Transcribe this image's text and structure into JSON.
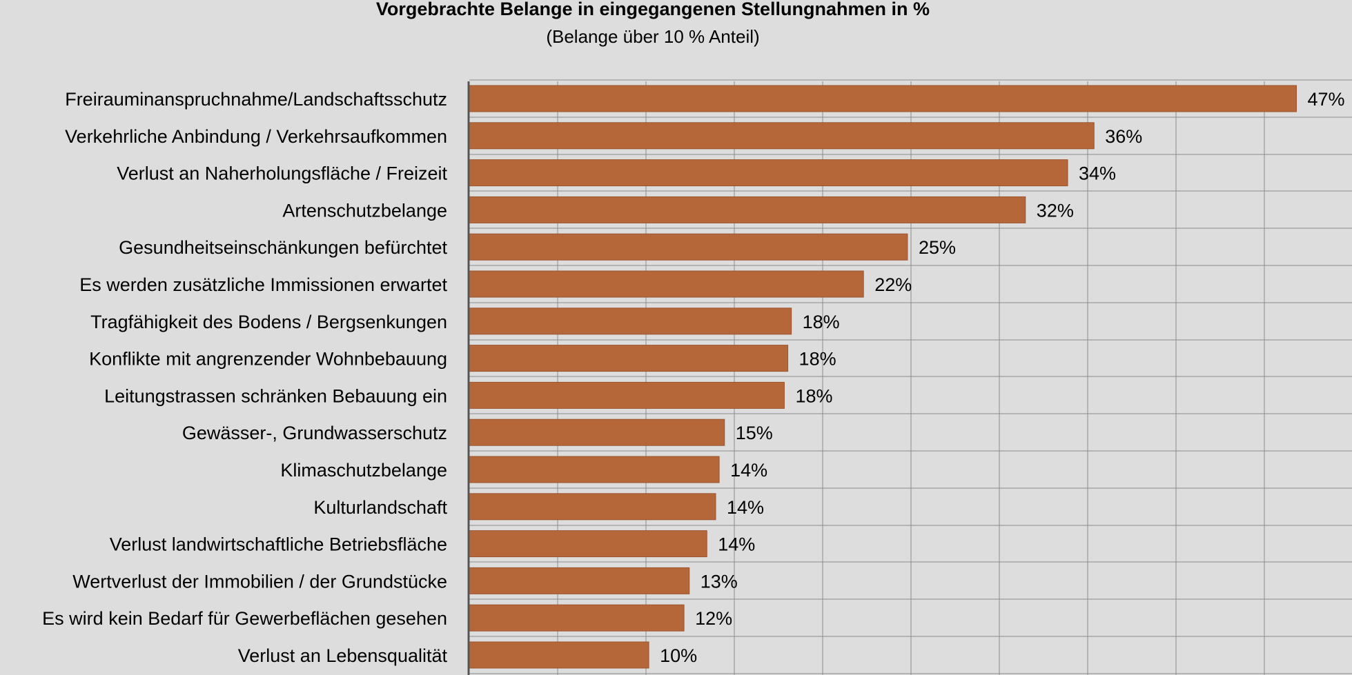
{
  "chart_data": {
    "type": "bar",
    "orientation": "horizontal",
    "title": "Vorgebrachte Belange in eingegangenen Stellungnahmen in %",
    "subtitle": "(Belange über 10 % Anteil)",
    "xlabel": "",
    "ylabel": "",
    "xlim": [
      0,
      50
    ],
    "grid": true,
    "legend": "none",
    "bar_color": "#b5673a",
    "categories": [
      "Freirauminanspruchnahme/Landschaftsschutz",
      "Verkehrliche Anbindung / Verkehrsaufkommen",
      "Verlust an Naherholungsfläche / Freizeit",
      "Artenschutzbelange",
      "Gesundheitseinschänkungen befürchtet",
      "Es werden zusätzliche Immissionen erwartet",
      "Tragfähigkeit des Bodens / Bergsenkungen",
      "Konflikte mit angrenzender Wohnbebauung",
      "Leitungstrassen schränken Bebauung ein",
      "Gewässer-, Grundwasserschutz",
      "Klimaschutzbelange",
      "Kulturlandschaft",
      "Verlust landwirtschaftliche Betriebsfläche",
      "Wertverlust der Immobilien / der Grundstücke",
      "Es wird kein Bedarf für Gewerbeflächen gesehen",
      "Verlust an Lebensqualität"
    ],
    "values": [
      47,
      35.5,
      34,
      31.6,
      24.9,
      22.4,
      18.3,
      18.1,
      17.9,
      14.5,
      14.2,
      14,
      13.5,
      12.5,
      12.2,
      10.2
    ],
    "value_labels": [
      "47%",
      "36%",
      "34%",
      "32%",
      "25%",
      "22%",
      "18%",
      "18%",
      "18%",
      "15%",
      "14%",
      "14%",
      "14%",
      "13%",
      "12%",
      "10%"
    ]
  }
}
